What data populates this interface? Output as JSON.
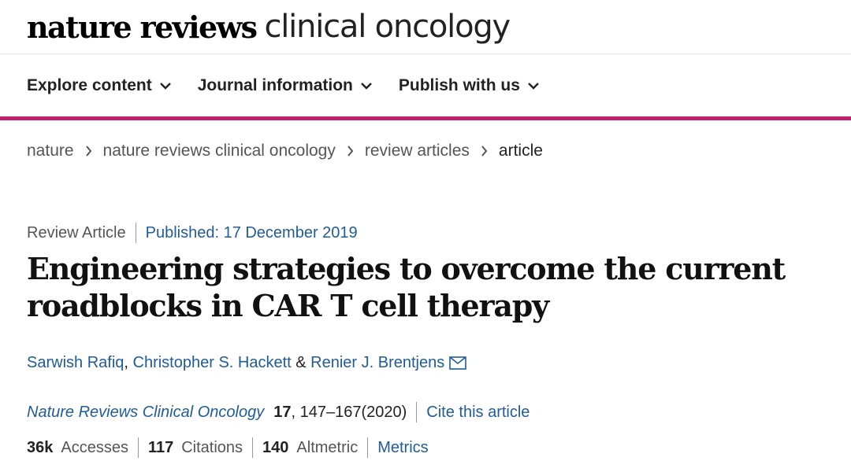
{
  "brand": {
    "bold": "nature reviews",
    "light": "clinical oncology"
  },
  "nav": {
    "items": [
      {
        "label": "Explore content"
      },
      {
        "label": "Journal information"
      },
      {
        "label": "Publish with us"
      }
    ],
    "accent_color": "#c3206f"
  },
  "breadcrumb": [
    "nature",
    "nature reviews clinical oncology",
    "review articles",
    "article"
  ],
  "article": {
    "type": "Review Article",
    "published": "Published: 17 December 2019",
    "title": "Engineering strategies to overcome the current roadblocks in CAR T cell therapy",
    "authors": {
      "a1": "Sarwish Rafiq",
      "sep1": ", ",
      "a2": "Christopher S. Hackett",
      "sep2": " & ",
      "a3": "Renier J. Brentjens"
    },
    "journal": "Nature Reviews Clinical Oncology",
    "volume": "17",
    "pages": ", 147–167(2020)",
    "cite": "Cite this article"
  },
  "metrics": {
    "accesses_value": "36k",
    "accesses_label": "Accesses",
    "citations_value": "117",
    "citations_label": "Citations",
    "altmetric_value": "140",
    "altmetric_label": "Altmetric",
    "link": "Metrics"
  },
  "icons": {
    "nav_chevron": "chevron-down-icon",
    "breadcrumb_sep": "chevron-right-icon",
    "author_contact": "mail-icon"
  },
  "colors": {
    "link": "#1f5c99",
    "text": "#222222"
  }
}
